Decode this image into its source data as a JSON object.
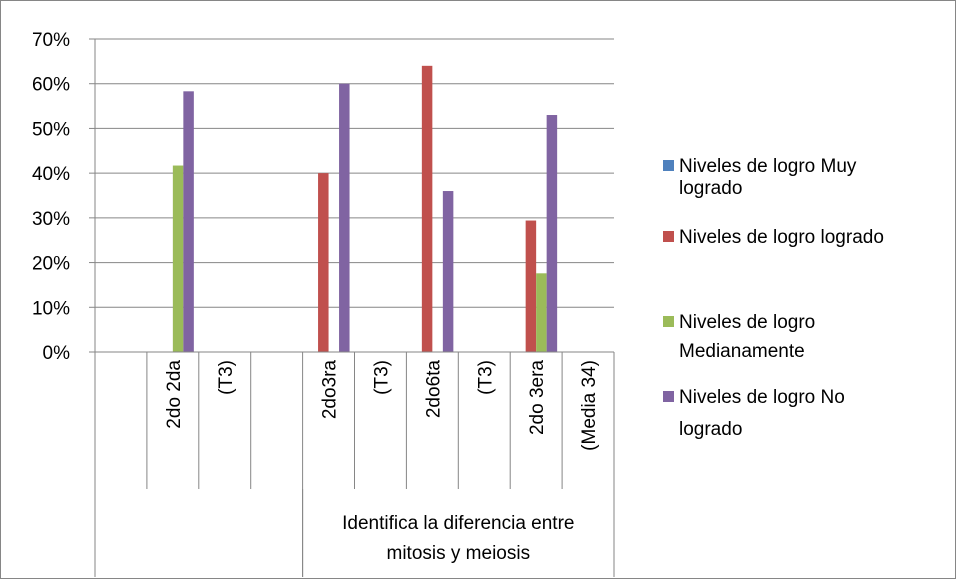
{
  "chart_data": {
    "type": "bar",
    "title": "",
    "xlabel": "",
    "ylabel": "",
    "ylim": [
      0,
      0.7
    ],
    "yticks": [
      "0%",
      "10%",
      "20%",
      "30%",
      "40%",
      "50%",
      "60%",
      "70%"
    ],
    "grid": true,
    "legend_position": "right",
    "categories": [
      "",
      "2do 2da",
      "(T3)",
      "",
      "2do3ra",
      "(T3)",
      "2do6ta",
      "(T3)",
      "2do 3era",
      "(Media 34)"
    ],
    "group_labels": [
      {
        "label": "",
        "from": 0,
        "to": 3
      },
      {
        "label": "Identifica la diferencia entre mitosis y meiosis",
        "label_lines": [
          "Identifica la diferencia entre",
          "mitosis y meiosis"
        ],
        "from": 4,
        "to": 9
      }
    ],
    "series": [
      {
        "name": "Niveles de logro Muy logrado",
        "name_lines": [
          "Niveles de logro Muy",
          "logrado"
        ],
        "color": "#4F81BD",
        "values": [
          null,
          null,
          null,
          null,
          null,
          null,
          null,
          null,
          null,
          null
        ]
      },
      {
        "name": "Niveles de logro logrado",
        "name_lines": [
          "Niveles de logro logrado"
        ],
        "color": "#C0504D",
        "values": [
          null,
          null,
          null,
          null,
          0.4,
          null,
          0.64,
          null,
          0.294,
          null
        ]
      },
      {
        "name": "Niveles de logro Medianamente",
        "name_lines": [
          "Niveles de logro",
          "Medianamente"
        ],
        "color": "#9BBB59",
        "values": [
          null,
          0.417,
          null,
          null,
          null,
          null,
          null,
          null,
          0.176,
          null
        ]
      },
      {
        "name": "Niveles de logro No logrado",
        "name_lines": [
          "Niveles de logro No",
          "logrado"
        ],
        "color": "#8064A2",
        "values": [
          null,
          0.583,
          null,
          null,
          0.6,
          null,
          0.36,
          null,
          0.53,
          null
        ]
      }
    ]
  }
}
